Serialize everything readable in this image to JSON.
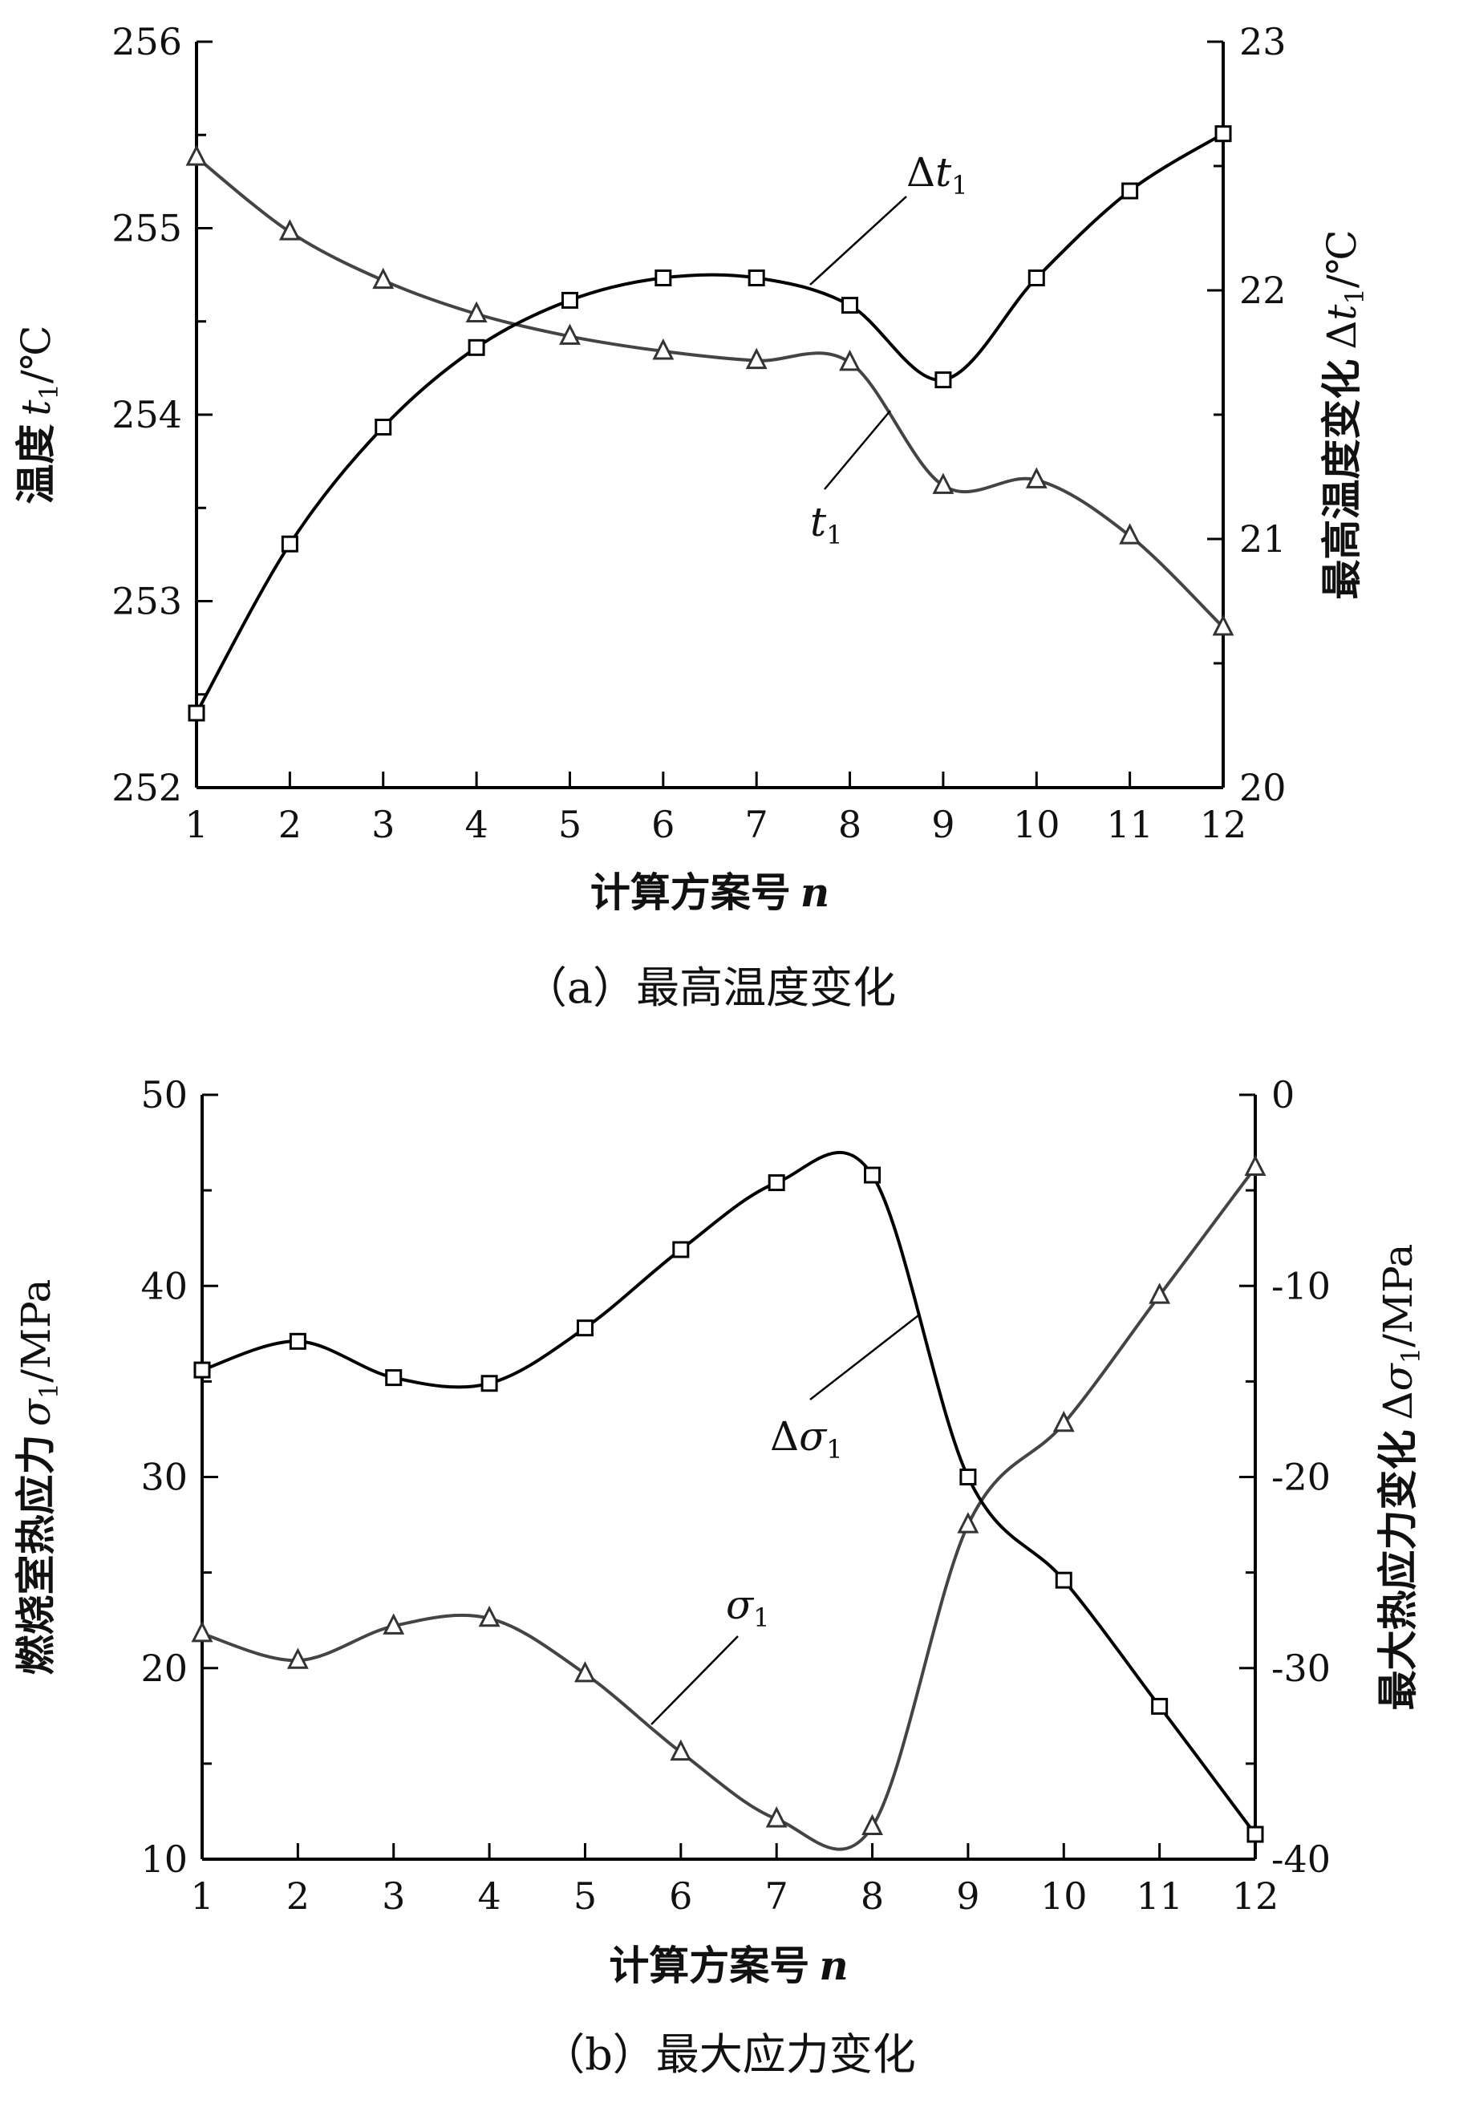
{
  "chart_data": [
    {
      "type": "line",
      "caption": "（a）最高温度变化",
      "xlabel_prefix": "计算方案号",
      "xlabel_var": "n",
      "ylabel_left_prefix": "温度",
      "ylabel_left_var": "t",
      "ylabel_left_sub": "1",
      "ylabel_left_unit": "/℃",
      "ylabel_right_prefix": "最高温度变化",
      "ylabel_right_delta": "Δ",
      "ylabel_right_var": "t",
      "ylabel_right_sub": "1",
      "ylabel_right_unit": "/℃",
      "x": [
        1,
        2,
        3,
        4,
        5,
        6,
        7,
        8,
        9,
        10,
        11,
        12
      ],
      "x_ticks": [
        "1",
        "2",
        "3",
        "4",
        "5",
        "6",
        "7",
        "8",
        "9",
        "10",
        "11",
        "12"
      ],
      "ylim_left": [
        252,
        256
      ],
      "yticks_left": [
        "252",
        "253",
        "254",
        "255",
        "256"
      ],
      "ylim_right": [
        20,
        23
      ],
      "yticks_right": [
        "20",
        "21",
        "22",
        "23"
      ],
      "series": [
        {
          "label_var": "t",
          "label_sub": "1",
          "label_delta": "",
          "axis": "left",
          "marker": "triangle",
          "color": "#444444",
          "values": [
            255.38,
            254.98,
            254.72,
            254.54,
            254.42,
            254.34,
            254.29,
            254.28,
            253.62,
            253.65,
            253.35,
            252.86
          ]
        },
        {
          "label_delta": "Δ",
          "label_var": "t",
          "label_sub": "1",
          "axis": "right",
          "marker": "square",
          "color": "#000000",
          "values": [
            20.3,
            20.98,
            21.45,
            21.77,
            21.96,
            22.05,
            22.05,
            21.94,
            21.64,
            22.05,
            22.4,
            22.63
          ]
        }
      ]
    },
    {
      "type": "line",
      "caption": "（b）最大应力变化",
      "xlabel_prefix": "计算方案号",
      "xlabel_var": "n",
      "ylabel_left_prefix": "燃烧室热应力",
      "ylabel_left_var": "σ",
      "ylabel_left_sub": "1",
      "ylabel_left_unit": "/MPa",
      "ylabel_right_prefix": "最大热应力变化",
      "ylabel_right_delta": "Δ",
      "ylabel_right_var": "σ",
      "ylabel_right_sub": "1",
      "ylabel_right_unit": "/MPa",
      "x": [
        1,
        2,
        3,
        4,
        5,
        6,
        7,
        8,
        9,
        10,
        11,
        12
      ],
      "x_ticks": [
        "1",
        "2",
        "3",
        "4",
        "5",
        "6",
        "7",
        "8",
        "9",
        "10",
        "11",
        "12"
      ],
      "ylim_left": [
        10,
        50
      ],
      "yticks_left": [
        "10",
        "20",
        "30",
        "40",
        "50"
      ],
      "ylim_right": [
        -40,
        0
      ],
      "yticks_right": [
        "-40",
        "-30",
        "-20",
        "-10",
        "0"
      ],
      "series": [
        {
          "label_delta": "",
          "label_var": "σ",
          "label_sub": "1",
          "axis": "left",
          "marker": "triangle",
          "color": "#444444",
          "values": [
            21.8,
            20.4,
            22.2,
            22.6,
            19.7,
            15.6,
            12.1,
            11.7,
            27.5,
            32.8,
            39.5,
            46.2
          ]
        },
        {
          "label_delta": "Δ",
          "label_var": "σ",
          "label_sub": "1",
          "axis": "right",
          "marker": "square",
          "color": "#000000",
          "values": [
            -14.4,
            -12.9,
            -14.8,
            -15.1,
            -12.2,
            -8.1,
            -4.6,
            -4.2,
            -20.0,
            -25.4,
            -32.0,
            -38.7
          ]
        }
      ]
    }
  ]
}
